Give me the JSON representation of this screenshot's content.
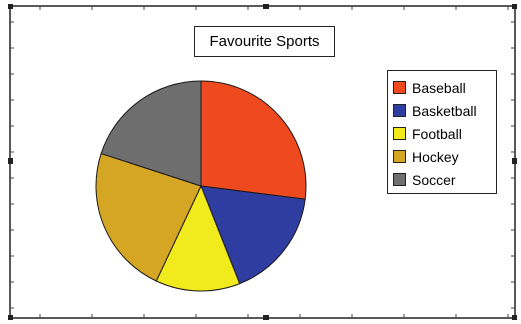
{
  "colors": {
    "background": "#ffffff",
    "frame": "#222222"
  },
  "chart_data": {
    "type": "pie",
    "title": "Favourite Sports",
    "legend_position": "right",
    "start": "12 o'clock, clockwise",
    "slices": [
      {
        "name": "Baseball",
        "value": 27,
        "color": "#ef4a1f"
      },
      {
        "name": "Basketball",
        "value": 17,
        "color": "#2f3da0"
      },
      {
        "name": "Football",
        "value": 13,
        "color": "#f1ea1c"
      },
      {
        "name": "Hockey",
        "value": 23,
        "color": "#d5a623"
      },
      {
        "name": "Soccer",
        "value": 20,
        "color": "#6e6e6e"
      }
    ]
  }
}
